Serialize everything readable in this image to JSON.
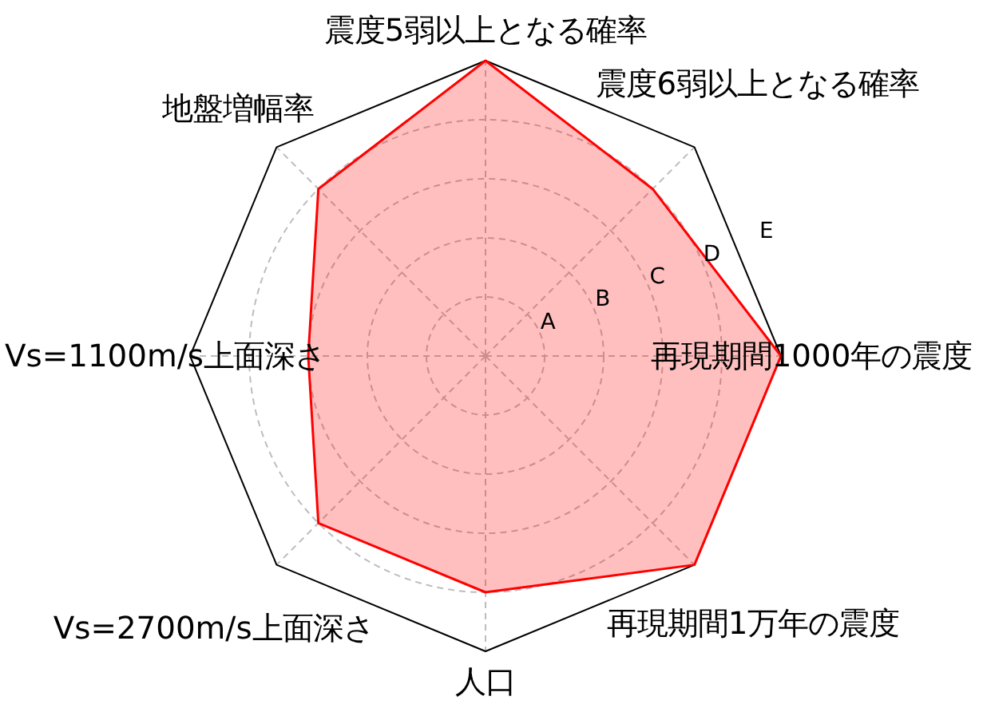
{
  "chart_data": {
    "type": "radar",
    "categories": [
      "震度5弱以上となる確率",
      "震度6弱以上となる確率",
      "再現期間1000年の震度",
      "再現期間1万年の震度",
      "人口",
      "Vs=2700m/s上面深さ",
      "Vs=1100m/s上面深さ",
      "地盤増幅率"
    ],
    "series": [
      {
        "color": "#ff0000",
        "values": [
          5,
          4,
          5,
          5,
          4,
          4,
          3,
          4
        ]
      }
    ],
    "ylim": [
      0,
      5
    ],
    "yticks": [
      {
        "value": 1,
        "label": "A"
      },
      {
        "value": 2,
        "label": "B"
      },
      {
        "value": 3,
        "label": "C"
      },
      {
        "value": 4,
        "label": "D"
      },
      {
        "value": 5,
        "label": "E"
      }
    ],
    "grid": true
  }
}
